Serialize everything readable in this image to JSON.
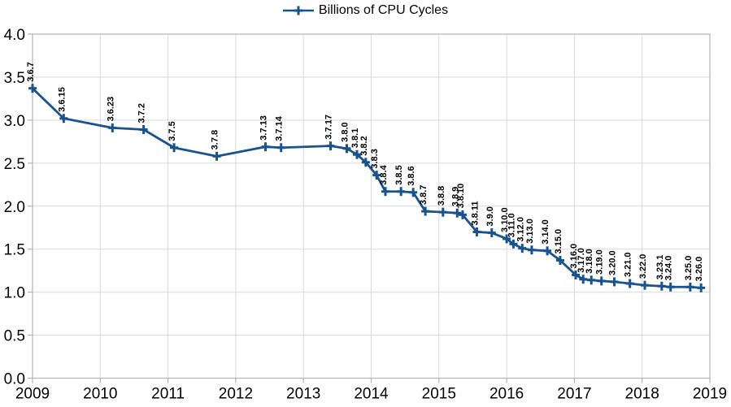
{
  "chart_data": {
    "type": "line",
    "title": "",
    "legend": {
      "label": "Billions of CPU Cycles",
      "position": "top"
    },
    "xlabel": "",
    "ylabel": "",
    "xlim": [
      2009,
      2019
    ],
    "ylim": [
      0,
      4
    ],
    "grid": true,
    "x_ticks": [
      {
        "v": 2009,
        "label": "2009"
      },
      {
        "v": 2010,
        "label": "2010"
      },
      {
        "v": 2011,
        "label": "2011"
      },
      {
        "v": 2012,
        "label": "2012"
      },
      {
        "v": 2013,
        "label": "2013"
      },
      {
        "v": 2014,
        "label": "2014"
      },
      {
        "v": 2015,
        "label": "2015"
      },
      {
        "v": 2016,
        "label": "2016"
      },
      {
        "v": 2017,
        "label": "2017"
      },
      {
        "v": 2018,
        "label": "2018"
      },
      {
        "v": 2019,
        "label": "2019"
      }
    ],
    "y_ticks": [
      {
        "v": 0.0,
        "label": "0.0"
      },
      {
        "v": 0.5,
        "label": "0.5"
      },
      {
        "v": 1.0,
        "label": "1.0"
      },
      {
        "v": 1.5,
        "label": "1.5"
      },
      {
        "v": 2.0,
        "label": "2.0"
      },
      {
        "v": 2.5,
        "label": "2.5"
      },
      {
        "v": 3.0,
        "label": "3.0"
      },
      {
        "v": 3.5,
        "label": "3.5"
      },
      {
        "v": 4.0,
        "label": "4.0"
      }
    ],
    "colors": {
      "line": "#17538f",
      "grid": "#d9d9d9",
      "axis": "#b3b3b3",
      "text": "#000000",
      "background": "#ffffff"
    },
    "series": [
      {
        "name": "Billions of CPU Cycles",
        "marker": "plus",
        "points": [
          {
            "label": "3.6.7",
            "x": 2009.0,
            "y": 3.37
          },
          {
            "label": "3.6.15",
            "x": 2009.46,
            "y": 3.02
          },
          {
            "label": "3.6.23",
            "x": 2010.18,
            "y": 2.91
          },
          {
            "label": "3.7.2",
            "x": 2010.64,
            "y": 2.89
          },
          {
            "label": "3.7.5",
            "x": 2011.09,
            "y": 2.68
          },
          {
            "label": "3.7.8",
            "x": 2011.72,
            "y": 2.58
          },
          {
            "label": "3.7.13",
            "x": 2012.44,
            "y": 2.69
          },
          {
            "label": "3.7.14",
            "x": 2012.67,
            "y": 2.68
          },
          {
            "label": "3.7.17",
            "x": 2013.4,
            "y": 2.7
          },
          {
            "label": "3.8.0",
            "x": 2013.64,
            "y": 2.67
          },
          {
            "label": "3.8.1",
            "x": 2013.79,
            "y": 2.6
          },
          {
            "label": "3.8.2",
            "x": 2013.92,
            "y": 2.51
          },
          {
            "label": "3.8.3",
            "x": 2014.08,
            "y": 2.36
          },
          {
            "label": "3.8.4",
            "x": 2014.21,
            "y": 2.17
          },
          {
            "label": "3.8.5",
            "x": 2014.44,
            "y": 2.17
          },
          {
            "label": "3.8.6",
            "x": 2014.62,
            "y": 2.16
          },
          {
            "label": "3.8.7",
            "x": 2014.8,
            "y": 1.94
          },
          {
            "label": "3.8.8",
            "x": 2015.06,
            "y": 1.93
          },
          {
            "label": "3.8.9",
            "x": 2015.27,
            "y": 1.92
          },
          {
            "label": "3.8.10",
            "x": 2015.35,
            "y": 1.9
          },
          {
            "label": "3.8.11",
            "x": 2015.56,
            "y": 1.7
          },
          {
            "label": "3.9.0",
            "x": 2015.78,
            "y": 1.69
          },
          {
            "label": "3.10.0",
            "x": 2016.0,
            "y": 1.62
          },
          {
            "label": "3.11.0",
            "x": 2016.1,
            "y": 1.56
          },
          {
            "label": "3.12.0",
            "x": 2016.23,
            "y": 1.51
          },
          {
            "label": "3.13.0",
            "x": 2016.37,
            "y": 1.49
          },
          {
            "label": "3.14.0",
            "x": 2016.6,
            "y": 1.48
          },
          {
            "label": "3.15.0",
            "x": 2016.79,
            "y": 1.37
          },
          {
            "label": "3.16.0",
            "x": 2017.02,
            "y": 1.2
          },
          {
            "label": "3.17.0",
            "x": 2017.13,
            "y": 1.15
          },
          {
            "label": "3.18.0",
            "x": 2017.25,
            "y": 1.14
          },
          {
            "label": "3.19.0",
            "x": 2017.4,
            "y": 1.13
          },
          {
            "label": "3.20.0",
            "x": 2017.59,
            "y": 1.12
          },
          {
            "label": "3.21.0",
            "x": 2017.82,
            "y": 1.1
          },
          {
            "label": "3.22.0",
            "x": 2018.04,
            "y": 1.08
          },
          {
            "label": "3.23.1",
            "x": 2018.29,
            "y": 1.07
          },
          {
            "label": "3.24.0",
            "x": 2018.42,
            "y": 1.06
          },
          {
            "label": "3.25.0",
            "x": 2018.71,
            "y": 1.06
          },
          {
            "label": "3.26.0",
            "x": 2018.87,
            "y": 1.05
          }
        ]
      }
    ]
  }
}
